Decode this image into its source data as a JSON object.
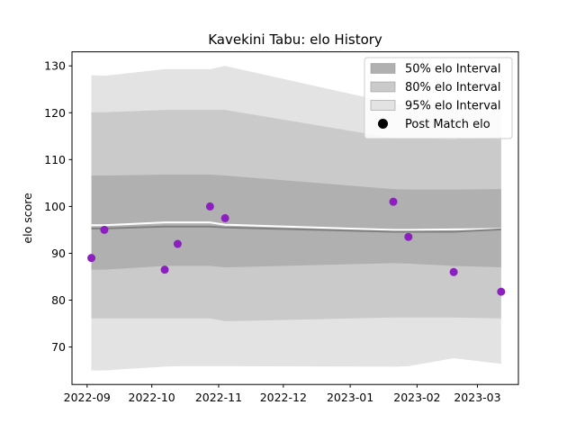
{
  "chart_data": {
    "type": "line",
    "title": "Kavekini Tabu: elo History",
    "xlabel": "",
    "ylabel": "elo score",
    "x_ticks": [
      "2022-09",
      "2022-10",
      "2022-11",
      "2022-12",
      "2023-01",
      "2023-02",
      "2023-03"
    ],
    "xlim": [
      "2022-08-25",
      "2023-03-20"
    ],
    "ylim": [
      62,
      133
    ],
    "y_ticks": [
      70,
      80,
      90,
      100,
      110,
      120,
      130
    ],
    "grid": false,
    "legend_position": "top-right",
    "legend": [
      {
        "label": "50% elo Interval",
        "kind": "patch",
        "color": "#b0b0b0"
      },
      {
        "label": "80% elo Interval",
        "kind": "patch",
        "color": "#cacaca"
      },
      {
        "label": "95% elo Interval",
        "kind": "patch",
        "color": "#e3e3e3"
      },
      {
        "label": "Post Match elo",
        "kind": "marker",
        "color": "#000000"
      }
    ],
    "x_dates": [
      "2022-09-03",
      "2022-09-09",
      "2022-10-07",
      "2022-10-13",
      "2022-10-28",
      "2022-11-04",
      "2023-01-21",
      "2023-01-28",
      "2023-02-18",
      "2023-03-12"
    ],
    "bands": [
      {
        "name": "95% elo Interval",
        "color": "#e3e3e3",
        "upper": [
          128.0,
          127.9,
          129.3,
          129.3,
          129.3,
          130.0,
          122.0,
          121.5,
          121.2,
          122.0
        ],
        "lower": [
          65.0,
          65.0,
          65.8,
          65.9,
          65.9,
          65.9,
          65.8,
          65.9,
          67.6,
          66.4
        ]
      },
      {
        "name": "80% elo Interval",
        "color": "#cacaca",
        "upper": [
          120.1,
          120.1,
          120.6,
          120.6,
          120.6,
          120.6,
          114.6,
          114.5,
          114.3,
          114.9
        ],
        "lower": [
          76.1,
          76.1,
          76.1,
          76.1,
          76.1,
          75.5,
          76.3,
          76.3,
          76.3,
          76.1
        ]
      },
      {
        "name": "50% elo Interval",
        "color": "#b0b0b0",
        "upper": [
          106.6,
          106.6,
          106.8,
          106.8,
          106.8,
          106.6,
          103.7,
          103.6,
          103.6,
          103.7
        ],
        "lower": [
          86.5,
          86.5,
          87.3,
          87.3,
          87.3,
          87.0,
          87.9,
          87.8,
          87.3,
          87.0
        ]
      }
    ],
    "series": [
      {
        "kind": "line",
        "color": "#ffffff",
        "values": [
          96.0,
          96.0,
          96.6,
          96.6,
          96.6,
          96.1,
          95.0,
          95.0,
          95.1,
          95.2
        ]
      },
      {
        "kind": "line",
        "color": "#808080",
        "values": [
          95.3,
          95.3,
          95.7,
          95.7,
          95.7,
          95.5,
          94.6,
          94.6,
          94.6,
          95.1
        ]
      },
      {
        "name": "Post Match elo",
        "kind": "scatter",
        "color": "#8c1fbf",
        "x": [
          "2022-09-03",
          "2022-09-09",
          "2022-10-07",
          "2022-10-13",
          "2022-10-28",
          "2022-11-04",
          "2023-01-21",
          "2023-01-28",
          "2023-02-18",
          "2023-03-12"
        ],
        "values": [
          89.0,
          95.0,
          86.5,
          92.0,
          100.0,
          97.5,
          101.0,
          93.5,
          86.0,
          81.8
        ]
      }
    ]
  }
}
